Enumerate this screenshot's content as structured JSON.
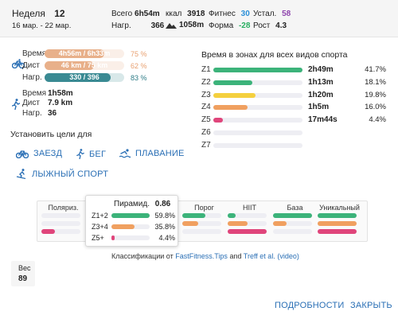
{
  "week": {
    "label": "Неделя",
    "number": "12",
    "dates": "16 мар. - 22 мар."
  },
  "summary": {
    "total_label": "Всего",
    "total_value": "6h54m",
    "kcal_label": "ккал",
    "kcal_value": "3918",
    "fitness_label": "Фитнес",
    "fitness_value": "30",
    "fatigue_label": "Устал.",
    "fatigue_value": "58",
    "load_label": "Нагр.",
    "load_value": "366",
    "elev_value": "1058m",
    "form_label": "Форма",
    "form_value": "-28",
    "growth_label": "Рост",
    "growth_value": "4.3",
    "colors": {
      "fitness": "#2a8fd8",
      "fatigue": "#8e44ad",
      "form": "#27ae60"
    }
  },
  "ride": {
    "icon": "bike-icon",
    "rows": [
      {
        "label": "Время",
        "value": "4h56m / 6h33m",
        "pct": "75 %",
        "fraction": 0.75,
        "color": "#e8b08a",
        "pct_color": "#e8a070"
      },
      {
        "label": "Дист",
        "value": "46 km / 75 km",
        "pct": "62 %",
        "fraction": 0.62,
        "color": "#e8b08a",
        "pct_color": "#e8a070"
      },
      {
        "label": "Нагр.",
        "value": "330 / 396",
        "pct": "83 %",
        "fraction": 0.83,
        "color": "#3a8a93",
        "pct_color": "#2f7d87"
      }
    ]
  },
  "run": {
    "icon": "run-icon",
    "rows": [
      {
        "label": "Время",
        "value": "1h58m"
      },
      {
        "label": "Дист",
        "value": "7.9 km"
      },
      {
        "label": "Нагр.",
        "value": "36"
      }
    ]
  },
  "goals": {
    "title": "Установить цели для",
    "buttons": [
      {
        "label": "ЗАЕЗД",
        "icon": "bike-icon"
      },
      {
        "label": "БЕГ",
        "icon": "run-icon"
      },
      {
        "label": "ПЛАВАНИЕ",
        "icon": "swim-icon"
      },
      {
        "label": "ЛЫЖНЫЙ СПОРТ",
        "icon": "ski-icon"
      }
    ]
  },
  "zones": {
    "title": "Время в зонах для всех видов спорта",
    "rows": [
      {
        "name": "Z1",
        "time": "2h49m",
        "pct": "41.7%",
        "fraction": 0.417,
        "color": "#3cb37a"
      },
      {
        "name": "Z2",
        "time": "1h13m",
        "pct": "18.1%",
        "fraction": 0.181,
        "color": "#3cb37a"
      },
      {
        "name": "Z3",
        "time": "1h20m",
        "pct": "19.8%",
        "fraction": 0.198,
        "color": "#f4d03f"
      },
      {
        "name": "Z4",
        "time": "1h5m",
        "pct": "16.0%",
        "fraction": 0.16,
        "color": "#f0a060"
      },
      {
        "name": "Z5",
        "time": "17m44s",
        "pct": "4.4%",
        "fraction": 0.044,
        "color": "#e0457b"
      },
      {
        "name": "Z6",
        "time": "",
        "pct": "",
        "fraction": 0,
        "color": "#e0457b"
      },
      {
        "name": "Z7",
        "time": "",
        "pct": "",
        "fraction": 0,
        "color": "#e0457b"
      }
    ]
  },
  "classifications": {
    "columns": [
      {
        "label": "Поляриз.",
        "bars": [
          0.0,
          0.0,
          0.35
        ]
      },
      {
        "label": "Пирамид.",
        "bars": [
          0.6,
          0.36,
          0.04
        ]
      },
      {
        "label": "Порог",
        "bars": [
          0.6,
          0.4,
          0.0
        ]
      },
      {
        "label": "HIIT",
        "bars": [
          0.2,
          0.5,
          1.0
        ]
      },
      {
        "label": "База",
        "bars": [
          1.0,
          0.35,
          0.0
        ]
      },
      {
        "label": "Уникальный",
        "bars": [
          1.0,
          1.0,
          1.0
        ]
      }
    ],
    "bar_colors": [
      "#3cb37a",
      "#f0a060",
      "#e0457b"
    ],
    "popup": {
      "title": "Пирамид.",
      "score": "0.86",
      "rows": [
        {
          "label": "Z1+2",
          "pct": "59.8%",
          "fraction": 0.598,
          "color": "#3cb37a"
        },
        {
          "label": "Z3+4",
          "pct": "35.8%",
          "fraction": 0.358,
          "color": "#f0a060"
        },
        {
          "label": "Z5+",
          "pct": "4.4%",
          "fraction": 0.044,
          "color": "#e0457b"
        }
      ]
    },
    "credit": {
      "prefix": "Классификации от ",
      "link1": "FastFitness.Tips",
      "middle": " and ",
      "link2": "Treff et al.",
      "link3": "(video)"
    }
  },
  "weight": {
    "label": "Вес",
    "value": "89"
  },
  "actions": {
    "details": "ПОДРОБНОСТИ",
    "close": "ЗАКРЫТЬ"
  }
}
